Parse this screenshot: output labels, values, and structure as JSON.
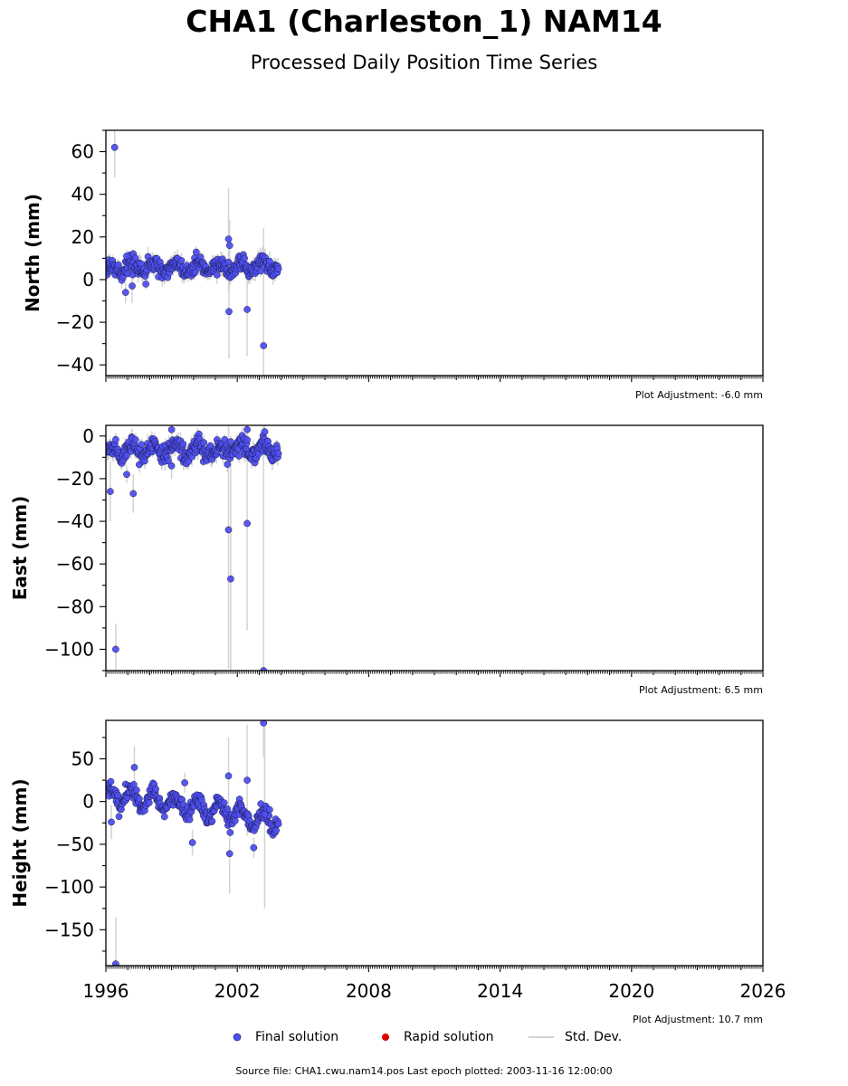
{
  "title": "CHA1 (Charleston_1) NAM14",
  "subtitle": "Processed Daily Position Time Series",
  "footer": "Source file: CHA1.cwu.nam14.pos  Last epoch plotted: 2003-11-16 12:00:00",
  "legend": {
    "final": "Final solution",
    "rapid": "Rapid solution",
    "std": "Std. Dev."
  },
  "colors": {
    "final": "#4f4ff0",
    "final_edge": "#1a1a4a",
    "rapid": "#dd0000",
    "std": "#d3d3d3"
  },
  "chart_data": [
    {
      "type": "scatter",
      "ylabel": "North (mm)",
      "xlim": [
        1996,
        2026
      ],
      "ylim": [
        -45,
        70
      ],
      "yticks": [
        -40,
        -20,
        0,
        20,
        40,
        60
      ],
      "xticks": [
        1996,
        2002,
        2008,
        2014,
        2020,
        2026
      ],
      "adjustment": "Plot Adjustment: -6.0 mm",
      "data_range": [
        1996.0,
        2003.88
      ],
      "baseline": {
        "center": 5.5,
        "slope": 0.0,
        "seasonal": 2.0,
        "noise": 2.0
      },
      "outliers": [
        {
          "x": 1996.4,
          "y": 62,
          "err": 14
        },
        {
          "x": 2001.6,
          "y": 19,
          "err": 24
        },
        {
          "x": 2001.65,
          "y": 16,
          "err": 12
        },
        {
          "x": 2001.62,
          "y": -15,
          "err": 22
        },
        {
          "x": 2002.45,
          "y": -14,
          "err": 22
        },
        {
          "x": 2003.2,
          "y": -31,
          "err": 55
        },
        {
          "x": 1996.9,
          "y": -6,
          "err": 5
        },
        {
          "x": 1997.2,
          "y": -3,
          "err": 8
        },
        {
          "x": 1996.95,
          "y": 11,
          "err": 3
        }
      ]
    },
    {
      "type": "scatter",
      "ylabel": "East (mm)",
      "xlim": [
        1996,
        2026
      ],
      "ylim": [
        -110,
        5
      ],
      "yticks": [
        -100,
        -80,
        -60,
        -40,
        -20,
        0
      ],
      "xticks": [
        1996,
        2002,
        2008,
        2014,
        2020,
        2026
      ],
      "adjustment": "Plot Adjustment: 6.5 mm",
      "data_range": [
        1996.0,
        2003.88
      ],
      "baseline": {
        "center": -6.5,
        "slope": 0.0,
        "seasonal": 2.5,
        "noise": 2.3
      },
      "outliers": [
        {
          "x": 1996.2,
          "y": -26,
          "err": 14
        },
        {
          "x": 1996.45,
          "y": -100,
          "err": 12
        },
        {
          "x": 1996.95,
          "y": -18,
          "err": 4
        },
        {
          "x": 1997.25,
          "y": -27,
          "err": 9
        },
        {
          "x": 1999.0,
          "y": 3,
          "err": 4
        },
        {
          "x": 1999.0,
          "y": -14,
          "err": 6
        },
        {
          "x": 2001.6,
          "y": -44,
          "err": 65
        },
        {
          "x": 2001.7,
          "y": -67,
          "err": 60
        },
        {
          "x": 2002.45,
          "y": 3,
          "err": 6
        },
        {
          "x": 2002.45,
          "y": -41,
          "err": 50
        },
        {
          "x": 2003.2,
          "y": -110,
          "err": 120
        },
        {
          "x": 2003.25,
          "y": 2,
          "err": 5
        }
      ]
    },
    {
      "type": "scatter",
      "ylabel": "Height (mm)",
      "xlim": [
        1996,
        2026
      ],
      "ylim": [
        -192,
        95
      ],
      "yticks": [
        -150,
        -100,
        -50,
        0,
        50
      ],
      "xticks": [
        1996,
        2002,
        2008,
        2014,
        2020,
        2026
      ],
      "xticklabels": [
        "1996",
        "2002",
        "2008",
        "2014",
        "2020",
        "2026"
      ],
      "adjustment": "Plot Adjustment: 10.7 mm",
      "data_range": [
        1996.0,
        2003.88
      ],
      "baseline": {
        "center": 10,
        "slope": -4.3,
        "seasonal": 10,
        "noise": 5
      },
      "outliers": [
        {
          "x": 1996.25,
          "y": -24,
          "err": 20
        },
        {
          "x": 1996.45,
          "y": -190,
          "err": 55
        },
        {
          "x": 1997.3,
          "y": 40,
          "err": 25
        },
        {
          "x": 1999.6,
          "y": 22,
          "err": 12
        },
        {
          "x": 1999.95,
          "y": -48,
          "err": 15
        },
        {
          "x": 2001.6,
          "y": 30,
          "err": 45
        },
        {
          "x": 2001.65,
          "y": -61,
          "err": 47
        },
        {
          "x": 2002.45,
          "y": 25,
          "err": 65
        },
        {
          "x": 2002.75,
          "y": -54,
          "err": 12
        },
        {
          "x": 2003.2,
          "y": 92,
          "err": 40
        },
        {
          "x": 2003.25,
          "y": -15,
          "err": 110
        }
      ]
    }
  ]
}
